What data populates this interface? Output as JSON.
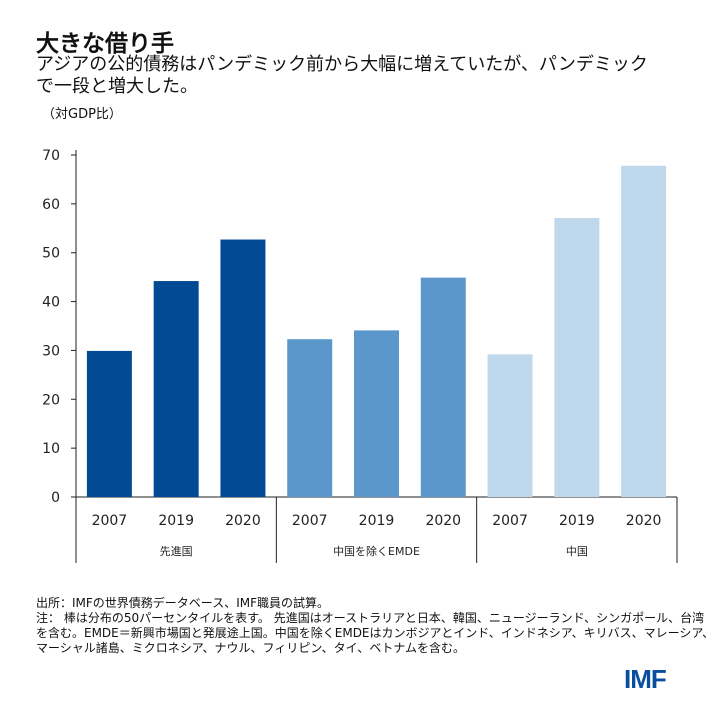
{
  "header": {
    "title": "大きな借り手",
    "subtitle": "アジアの公的債務はパンデミック前から大幅に増えていたが、パンデミックで一段と増大した。",
    "unit": "（対GDP比）"
  },
  "chart_data": {
    "type": "bar",
    "ylim": [
      0,
      70
    ],
    "yticks": [
      0,
      10,
      20,
      30,
      40,
      50,
      60,
      70
    ],
    "groups": [
      {
        "name": "先進国",
        "color": "#024b94",
        "categories": [
          "2007",
          "2019",
          "2020"
        ],
        "values": [
          29.9,
          44.2,
          52.7
        ]
      },
      {
        "name": "中国を除くEMDE",
        "color": "#5b97cb",
        "categories": [
          "2007",
          "2019",
          "2020"
        ],
        "values": [
          32.3,
          34.1,
          44.9
        ]
      },
      {
        "name": "中国",
        "color": "#c0d8ec",
        "categories": [
          "2007",
          "2019",
          "2020"
        ],
        "values": [
          29.2,
          57.1,
          67.8
        ]
      }
    ],
    "grid": false
  },
  "footer": {
    "source": "出所：IMFの世界債務データベース、IMF職員の試算。",
    "note": "注： 棒は分布の50パーセンタイルを表す。 先進国はオーストラリアと日本、韓国、ニュージーランド、シンガポール、台湾を含む。EMDE＝新興市場国と発展途上国。中国を除くEMDEはカンボジアとインド、インドネシア、キリバス、マレーシア、マーシャル諸島、ミクロネシア、ナウル、フィリピン、タイ、ベトナムを含む。",
    "logo": "IMF"
  }
}
